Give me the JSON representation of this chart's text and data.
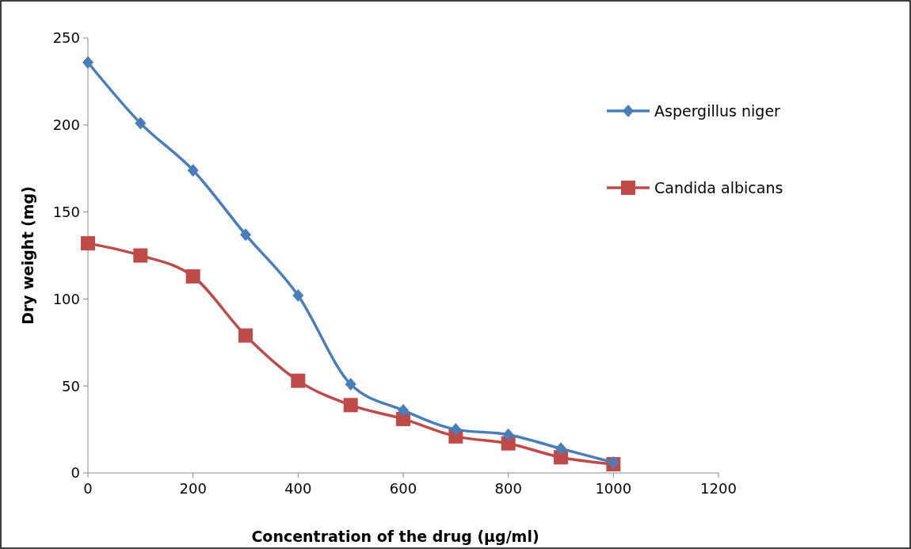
{
  "chart_data": {
    "type": "line",
    "xlabel": "Concentration of the  drug (µg/ml)",
    "ylabel": "Dry weight (mg)",
    "x": [
      0,
      100,
      200,
      300,
      400,
      500,
      600,
      700,
      800,
      900,
      1000
    ],
    "xlim": [
      0,
      1200
    ],
    "xticks": [
      0,
      200,
      400,
      600,
      800,
      1000,
      1200
    ],
    "ylim": [
      0,
      250
    ],
    "yticks": [
      0,
      50,
      100,
      150,
      200,
      250
    ],
    "grid": false,
    "legend": "right",
    "line_style": "solid",
    "series": [
      {
        "name": "Aspergillus niger",
        "color": "#4a7ebb",
        "marker": "diamond",
        "values": [
          236,
          201,
          174,
          137,
          102,
          51,
          36,
          25,
          22,
          14,
          6
        ]
      },
      {
        "name": "Candida albicans",
        "color": "#be4b48",
        "marker": "square",
        "values": [
          132,
          125,
          113,
          79,
          53,
          39,
          31,
          21,
          17,
          9,
          5
        ]
      }
    ]
  }
}
